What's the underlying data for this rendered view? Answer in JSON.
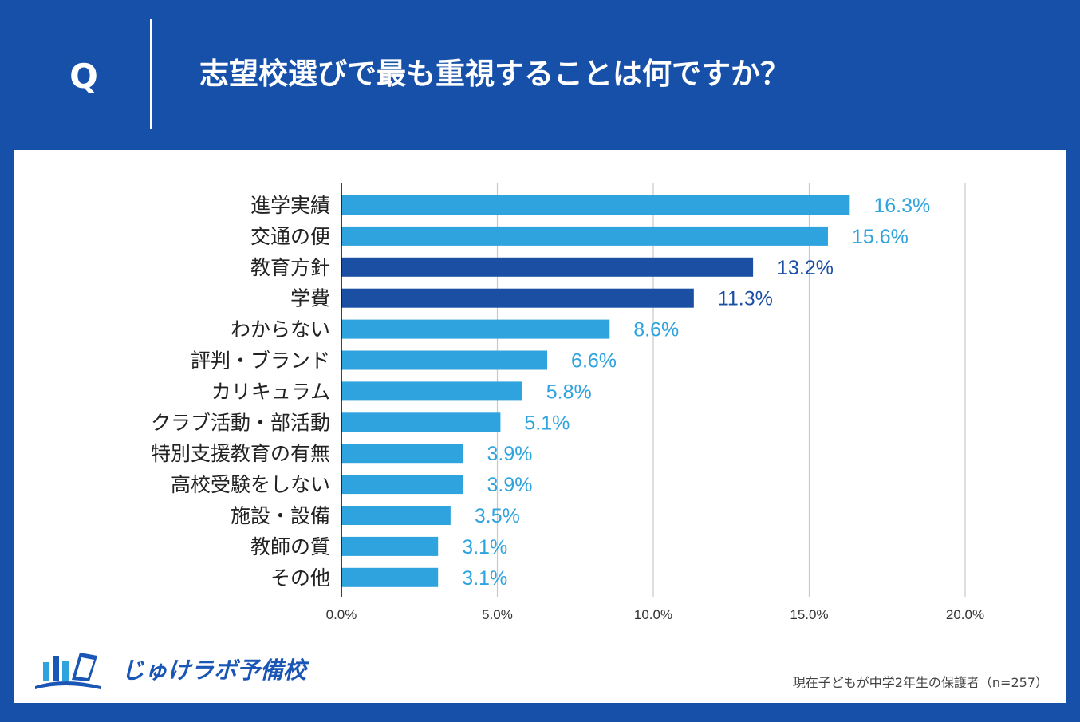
{
  "header": {
    "q_mark": "Q",
    "question": "志望校選びで最も重視することは何ですか？"
  },
  "colors": {
    "background": "#1750a8",
    "bar_light": "#2fa3dd",
    "bar_dark": "#1a4fa3",
    "grid": "#c8c8c8"
  },
  "chart_data": {
    "type": "bar",
    "orientation": "horizontal",
    "title": "志望校選びで最も重視することは何ですか？",
    "categories": [
      "進学実績",
      "交通の便",
      "教育方針",
      "学費",
      "わからない",
      "評判・ブランド",
      "カリキュラム",
      "クラブ活動・部活動",
      "特別支援教育の有無",
      "高校受験をしない",
      "施設・設備",
      "教師の質",
      "その他"
    ],
    "values": [
      16.3,
      15.6,
      13.2,
      11.3,
      8.6,
      6.6,
      5.8,
      5.1,
      3.9,
      3.9,
      3.5,
      3.1,
      3.1
    ],
    "value_labels": [
      "16.3%",
      "15.6%",
      "13.2%",
      "11.3%",
      "8.6%",
      "6.6%",
      "5.8%",
      "5.1%",
      "3.9%",
      "3.9%",
      "3.5%",
      "3.1%",
      "3.1%"
    ],
    "highlight": [
      false,
      false,
      true,
      true,
      false,
      false,
      false,
      false,
      false,
      false,
      false,
      false,
      false
    ],
    "xlim": [
      0,
      20
    ],
    "xticks": [
      0,
      5,
      10,
      15,
      20
    ],
    "xtick_labels": [
      "0.0%",
      "5.0%",
      "10.0%",
      "15.0%",
      "20.0%"
    ],
    "grid": true,
    "xlabel": "",
    "ylabel": ""
  },
  "logo": {
    "text": "じゅけラボ予備校",
    "icon": "book-icon"
  },
  "footnote": "現在子どもが中学2年生の保護者（n=257）"
}
